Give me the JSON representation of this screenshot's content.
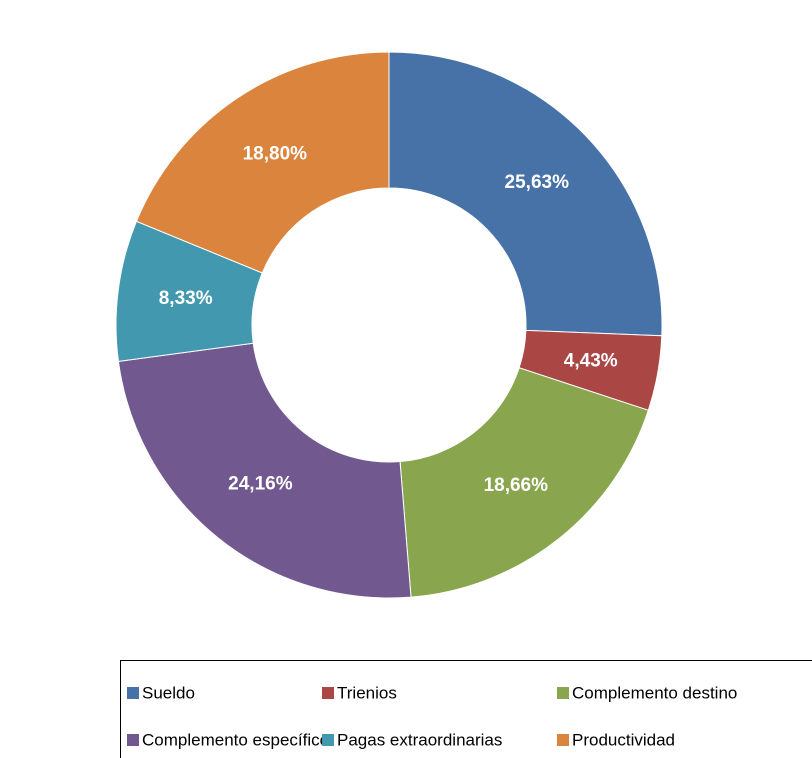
{
  "chart_data": {
    "type": "donut",
    "categories": [
      "Sueldo",
      "Trienios",
      "Complemento destino",
      "Complemento específico",
      "Pagas extraordinarias",
      "Productividad"
    ],
    "values": [
      25.63,
      4.43,
      18.66,
      24.16,
      8.33,
      18.8
    ],
    "value_labels": [
      "25,63%",
      "4,43%",
      "18,66%",
      "24,16%",
      "8,33%",
      "18,80%"
    ],
    "colors": [
      "#4672a8",
      "#aa4643",
      "#89a54e",
      "#71588f",
      "#4198af",
      "#db843d"
    ],
    "legend": "bottom"
  }
}
